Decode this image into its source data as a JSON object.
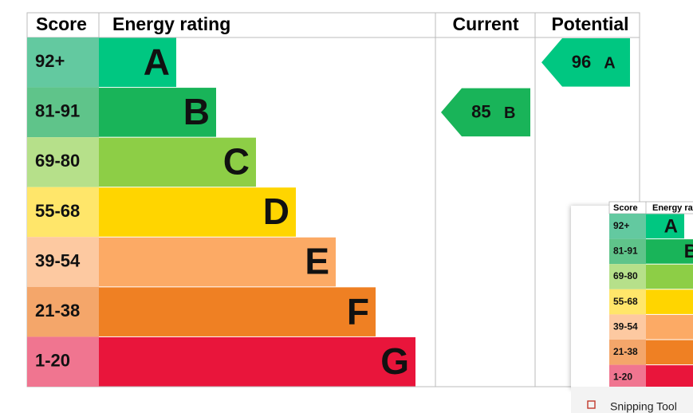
{
  "header": {
    "score": "Score",
    "energy_rating": "Energy rating",
    "current": "Current",
    "potential": "Potential"
  },
  "bands": [
    {
      "score": "92+",
      "letter": "A",
      "color": "#00c781",
      "score_color": "#63c9a0"
    },
    {
      "score": "81-91",
      "letter": "B",
      "color": "#19b459",
      "score_color": "#5fc48a"
    },
    {
      "score": "69-80",
      "letter": "C",
      "color": "#8dce46",
      "score_color": "#b6e08a"
    },
    {
      "score": "55-68",
      "letter": "D",
      "color": "#ffd500",
      "score_color": "#ffe66a"
    },
    {
      "score": "39-54",
      "letter": "E",
      "color": "#fcaa65",
      "score_color": "#fdc9a1"
    },
    {
      "score": "21-38",
      "letter": "F",
      "color": "#ef8023",
      "score_color": "#f4a66a"
    },
    {
      "score": "1-20",
      "letter": "G",
      "color": "#e9153b",
      "score_color": "#f07590"
    }
  ],
  "current": {
    "value": "85",
    "letter": "B",
    "band": 1
  },
  "potential": {
    "value": "96",
    "letter": "A",
    "band": 0
  },
  "thumbnail": {
    "score": "Score",
    "energy_rating": "Energy rating",
    "letters": [
      "A",
      "B"
    ]
  },
  "snipping_tool": {
    "label": "Snipping Tool"
  }
}
